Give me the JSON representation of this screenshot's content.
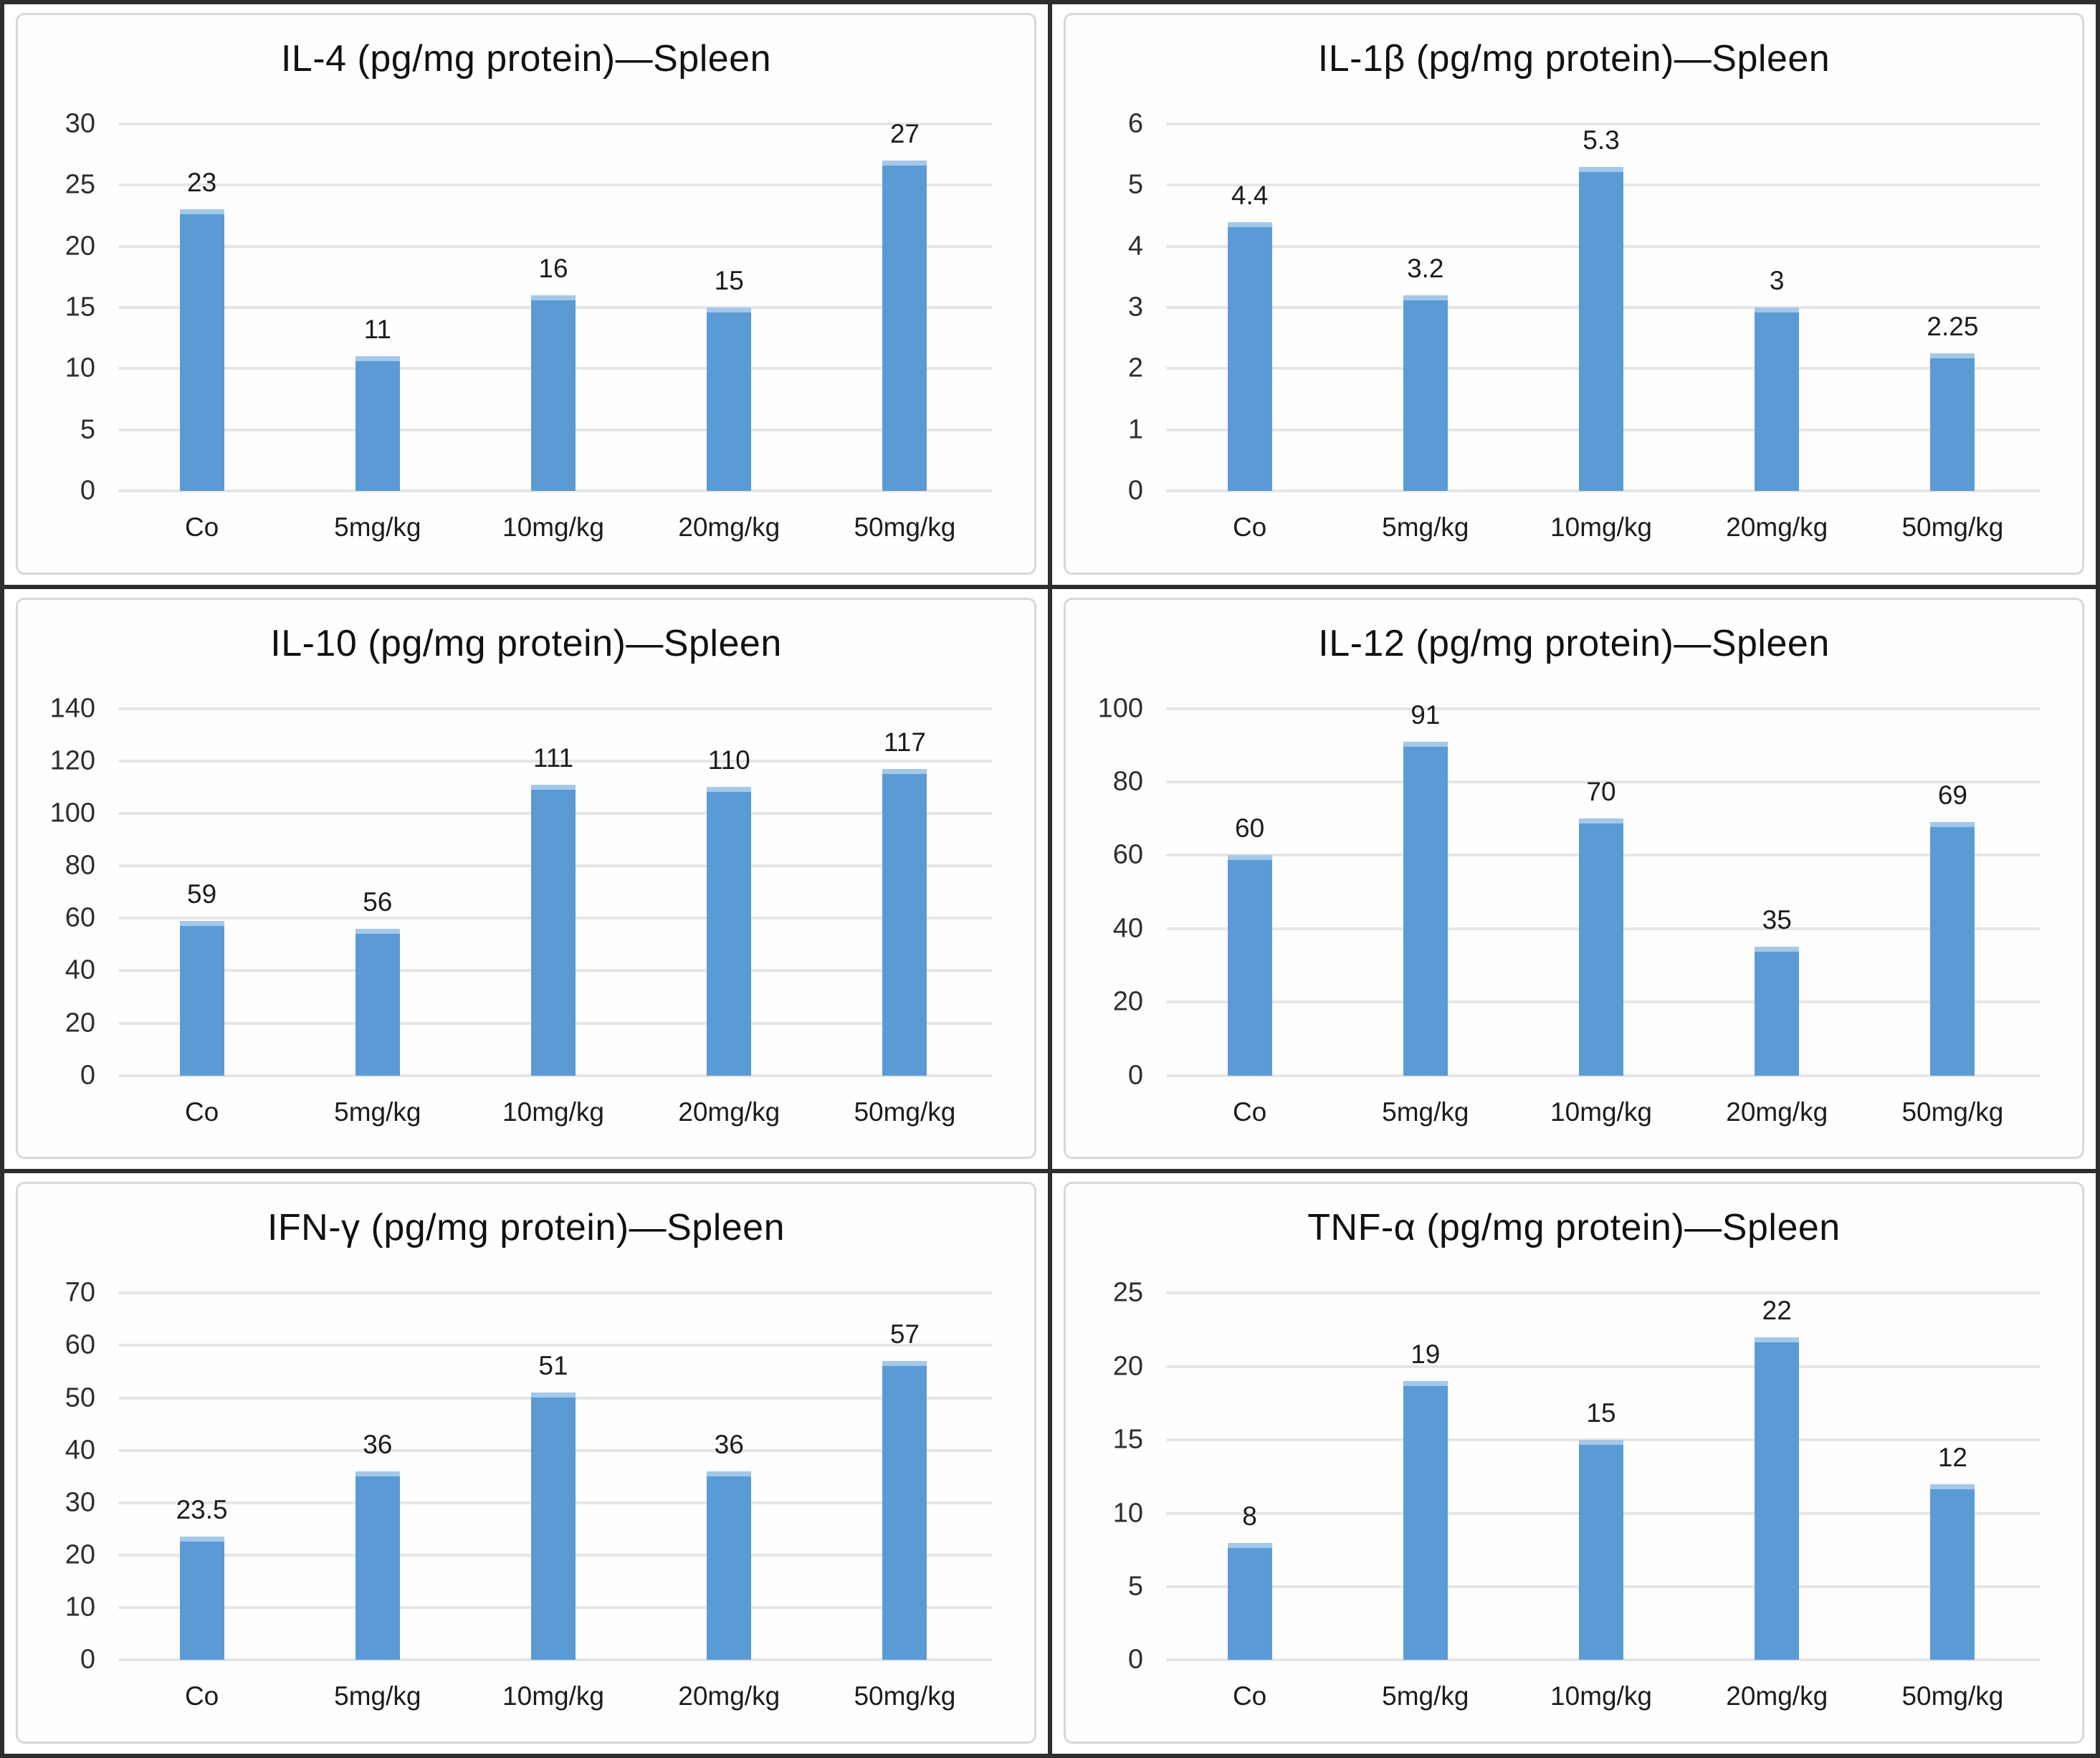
{
  "page": {
    "description": "Grid of six bar charts showing cytokine concentrations (pg/mg protein) in spleen for control and four dose groups"
  },
  "colors": {
    "bar": "#5b9bd5",
    "bar_top_cap": "#a3c8ea",
    "gridline": "#e6e6e6",
    "title_text": "#111111",
    "tick_text": "#2e2e2e",
    "panel_divider": "#2e2e2e",
    "chart_border": "#d8d8d8"
  },
  "chart_data": [
    {
      "type": "bar",
      "title": "IL-4 (pg/mg protein)—Spleen",
      "categories": [
        "Co",
        "5mg/kg",
        "10mg/kg",
        "20mg/kg",
        "50mg/kg"
      ],
      "values": [
        23,
        11,
        16,
        15,
        27
      ],
      "value_labels": [
        "23",
        "11",
        "16",
        "15",
        "27"
      ],
      "xlabel": "",
      "ylabel": "",
      "ylim": [
        0,
        30
      ],
      "ystep": 5,
      "grid": true,
      "legend": false
    },
    {
      "type": "bar",
      "title": "IL-1β (pg/mg protein)—Spleen",
      "categories": [
        "Co",
        "5mg/kg",
        "10mg/kg",
        "20mg/kg",
        "50mg/kg"
      ],
      "values": [
        4.4,
        3.2,
        5.3,
        3,
        2.25
      ],
      "value_labels": [
        "4.4",
        "3.2",
        "5.3",
        "3",
        "2.25"
      ],
      "xlabel": "",
      "ylabel": "",
      "ylim": [
        0,
        6
      ],
      "ystep": 1,
      "grid": true,
      "legend": false
    },
    {
      "type": "bar",
      "title": "IL-10 (pg/mg protein)—Spleen",
      "categories": [
        "Co",
        "5mg/kg",
        "10mg/kg",
        "20mg/kg",
        "50mg/kg"
      ],
      "values": [
        59,
        56,
        111,
        110,
        117
      ],
      "value_labels": [
        "59",
        "56",
        "111",
        "110",
        "117"
      ],
      "xlabel": "",
      "ylabel": "",
      "ylim": [
        0,
        140
      ],
      "ystep": 20,
      "grid": true,
      "legend": false
    },
    {
      "type": "bar",
      "title": "IL-12 (pg/mg protein)—Spleen",
      "categories": [
        "Co",
        "5mg/kg",
        "10mg/kg",
        "20mg/kg",
        "50mg/kg"
      ],
      "values": [
        60,
        91,
        70,
        35,
        69
      ],
      "value_labels": [
        "60",
        "91",
        "70",
        "35",
        "69"
      ],
      "xlabel": "",
      "ylabel": "",
      "ylim": [
        0,
        100
      ],
      "ystep": 20,
      "grid": true,
      "legend": false
    },
    {
      "type": "bar",
      "title": "IFN-γ (pg/mg protein)—Spleen",
      "categories": [
        "Co",
        "5mg/kg",
        "10mg/kg",
        "20mg/kg",
        "50mg/kg"
      ],
      "values": [
        23.5,
        36,
        51,
        36,
        57
      ],
      "value_labels": [
        "23.5",
        "36",
        "51",
        "36",
        "57"
      ],
      "xlabel": "",
      "ylabel": "",
      "ylim": [
        0,
        70
      ],
      "ystep": 10,
      "grid": true,
      "legend": false
    },
    {
      "type": "bar",
      "title": "TNF-α (pg/mg protein)—Spleen",
      "categories": [
        "Co",
        "5mg/kg",
        "10mg/kg",
        "20mg/kg",
        "50mg/kg"
      ],
      "values": [
        8,
        19,
        15,
        22,
        12
      ],
      "value_labels": [
        "8",
        "19",
        "15",
        "22",
        "12"
      ],
      "xlabel": "",
      "ylabel": "",
      "ylim": [
        0,
        25
      ],
      "ystep": 5,
      "grid": true,
      "legend": false
    }
  ]
}
